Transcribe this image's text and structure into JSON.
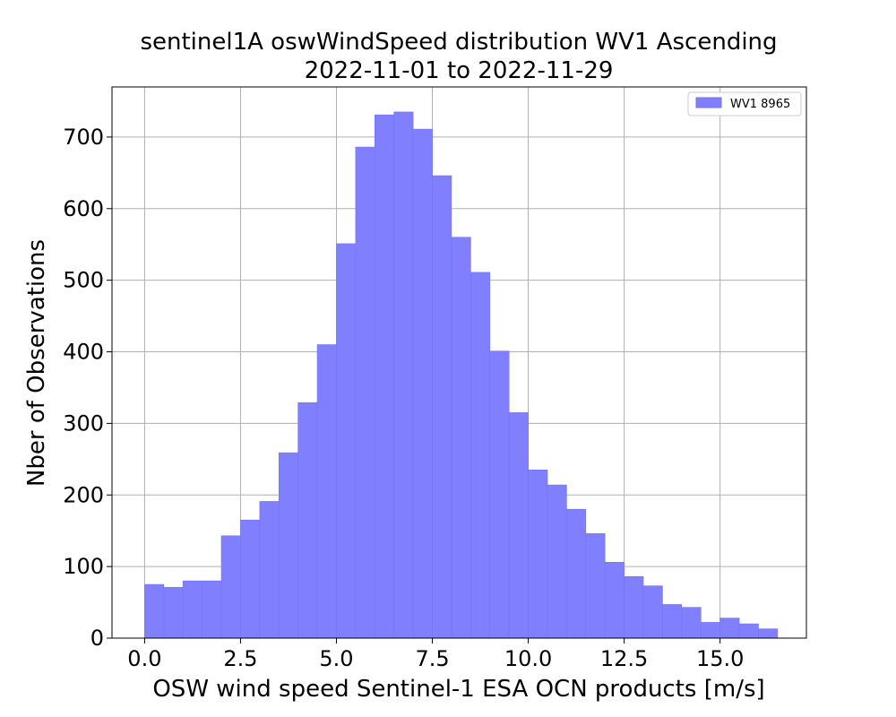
{
  "chart_data": {
    "type": "bar",
    "title_line1": "sentinel1A oswWindSpeed distribution WV1 Ascending",
    "title_line2": "2022-11-01 to 2022-11-29",
    "xlabel": "OSW wind speed Sentinel-1 ESA OCN products [m/s]",
    "ylabel": "Nber of Observations",
    "xlim": [
      -0.85,
      17.25
    ],
    "ylim": [
      0,
      770
    ],
    "xticks": [
      "0.0",
      "2.5",
      "5.0",
      "7.5",
      "10.0",
      "12.5",
      "15.0"
    ],
    "xtick_values": [
      0,
      2.5,
      5,
      7.5,
      10,
      12.5,
      15
    ],
    "yticks": [
      "0",
      "100",
      "200",
      "300",
      "400",
      "500",
      "600",
      "700"
    ],
    "ytick_values": [
      0,
      100,
      200,
      300,
      400,
      500,
      600,
      700
    ],
    "grid": true,
    "legend_position": "top-right",
    "legend_label": "WV1 8965",
    "bar_color": "#8080ff",
    "bar_edge_color": "#7373f2",
    "series": [
      {
        "name": "WV1 8965",
        "bin_start": 0,
        "bin_width": 0.5,
        "values": [
          75,
          71,
          80,
          80,
          143,
          165,
          191,
          259,
          329,
          410,
          551,
          686,
          731,
          735,
          711,
          646,
          560,
          511,
          401,
          315,
          235,
          214,
          180,
          146,
          106,
          86,
          73,
          47,
          43,
          22,
          28,
          20,
          13
        ]
      }
    ]
  }
}
